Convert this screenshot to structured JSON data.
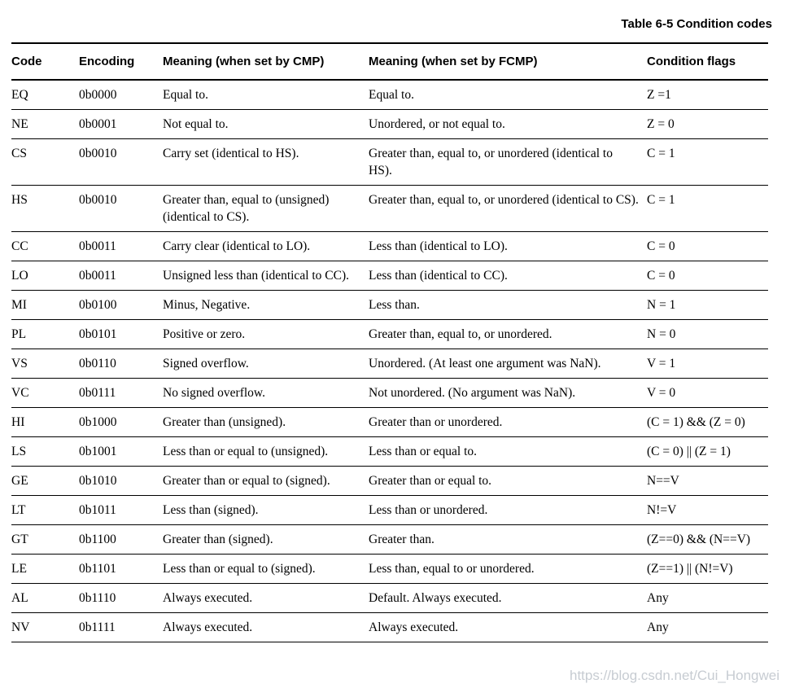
{
  "page": {
    "title": "Table 6-5 Condition codes",
    "watermark": "https://blog.csdn.net/Cui_Hongwei"
  },
  "table": {
    "columns": [
      "Code",
      "Encoding",
      "Meaning (when set by CMP)",
      "Meaning (when set by FCMP)",
      "Condition flags"
    ],
    "rows": [
      {
        "code": "EQ",
        "encoding": "0b0000",
        "cmp": "Equal to.",
        "fcmp": "Equal to.",
        "flags": "Z =1"
      },
      {
        "code": "NE",
        "encoding": "0b0001",
        "cmp": "Not equal to.",
        "fcmp": "Unordered, or not equal to.",
        "flags": "Z = 0"
      },
      {
        "code": "CS",
        "encoding": "0b0010",
        "cmp": "Carry set (identical to HS).",
        "fcmp": "Greater than, equal to, or unordered (identical to HS).",
        "flags": "C = 1"
      },
      {
        "code": "HS",
        "encoding": "0b0010",
        "cmp": "Greater than, equal to (unsigned) (identical to CS).",
        "fcmp": "Greater than, equal to, or unordered (identical to CS).",
        "flags": "C = 1"
      },
      {
        "code": "CC",
        "encoding": "0b0011",
        "cmp": "Carry clear (identical to LO).",
        "fcmp": "Less than (identical to LO).",
        "flags": "C = 0"
      },
      {
        "code": "LO",
        "encoding": "0b0011",
        "cmp": "Unsigned less than (identical to CC).",
        "fcmp": "Less than (identical to CC).",
        "flags": "C = 0"
      },
      {
        "code": "MI",
        "encoding": "0b0100",
        "cmp": "Minus, Negative.",
        "fcmp": "Less than.",
        "flags": "N = 1"
      },
      {
        "code": "PL",
        "encoding": "0b0101",
        "cmp": "Positive or zero.",
        "fcmp": "Greater than, equal to, or unordered.",
        "flags": "N = 0"
      },
      {
        "code": "VS",
        "encoding": "0b0110",
        "cmp": "Signed overflow.",
        "fcmp": "Unordered. (At least one argument was NaN).",
        "flags": "V = 1"
      },
      {
        "code": "VC",
        "encoding": "0b0111",
        "cmp": "No signed overflow.",
        "fcmp": "Not unordered. (No argument was NaN).",
        "flags": "V = 0"
      },
      {
        "code": "HI",
        "encoding": "0b1000",
        "cmp": "Greater than (unsigned).",
        "fcmp": "Greater than or unordered.",
        "flags": "(C = 1) && (Z = 0)"
      },
      {
        "code": "LS",
        "encoding": "0b1001",
        "cmp": "Less than or equal to (unsigned).",
        "fcmp": "Less than or equal to.",
        "flags": "(C = 0) || (Z = 1)"
      },
      {
        "code": "GE",
        "encoding": "0b1010",
        "cmp": "Greater than or equal to (signed).",
        "fcmp": "Greater than or equal to.",
        "flags": "N==V"
      },
      {
        "code": "LT",
        "encoding": "0b1011",
        "cmp": "Less than (signed).",
        "fcmp": "Less than or unordered.",
        "flags": "N!=V"
      },
      {
        "code": "GT",
        "encoding": "0b1100",
        "cmp": "Greater than (signed).",
        "fcmp": "Greater than.",
        "flags": "(Z==0) && (N==V)"
      },
      {
        "code": "LE",
        "encoding": "0b1101",
        "cmp": "Less than or equal to (signed).",
        "fcmp": "Less than, equal to or unordered.",
        "flags": "(Z==1) || (N!=V)"
      },
      {
        "code": "AL",
        "encoding": "0b1110",
        "cmp": "Always executed.",
        "fcmp": "Default. Always executed.",
        "flags": "Any"
      },
      {
        "code": "NV",
        "encoding": "0b1111",
        "cmp": "Always executed.",
        "fcmp": "Always executed.",
        "flags": "Any"
      }
    ]
  }
}
